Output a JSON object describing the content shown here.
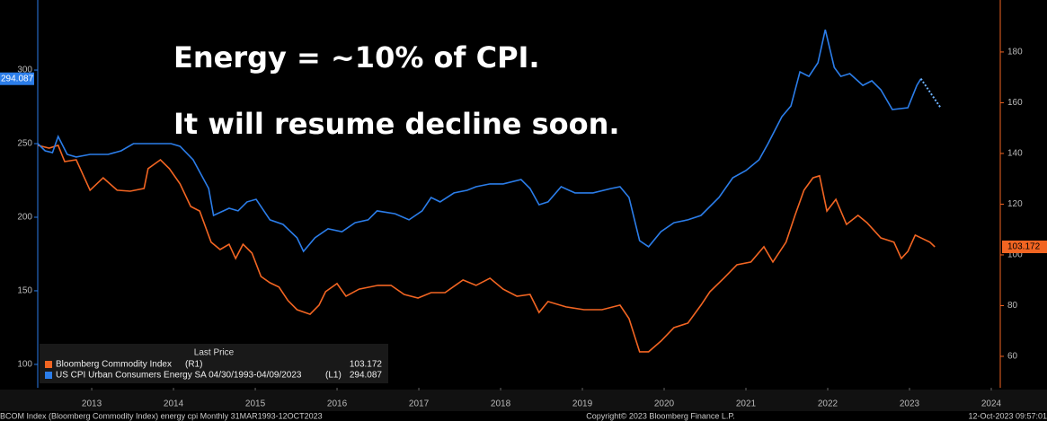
{
  "chart_data": {
    "type": "line",
    "title": "Energy = ~10% of CPI.",
    "subtitle": "It will resume decline soon.",
    "legend_title": "Last Price",
    "xlim": [
      2012.84,
      2024.61
    ],
    "xticks": [
      {
        "value": 2013.5,
        "label": "2013"
      },
      {
        "value": 2014.5,
        "label": "2014"
      },
      {
        "value": 2015.5,
        "label": "2015"
      },
      {
        "value": 2016.5,
        "label": "2016"
      },
      {
        "value": 2017.5,
        "label": "2017"
      },
      {
        "value": 2018.5,
        "label": "2018"
      },
      {
        "value": 2019.5,
        "label": "2019"
      },
      {
        "value": 2020.5,
        "label": "2020"
      },
      {
        "value": 2021.5,
        "label": "2021"
      },
      {
        "value": 2022.5,
        "label": "2022"
      },
      {
        "value": 2023.5,
        "label": "2023"
      },
      {
        "value": 2024.5,
        "label": "2024"
      }
    ],
    "ylim": [
      84.1,
      347.6
    ],
    "yticks": [
      100,
      150,
      200,
      250,
      300
    ],
    "y2lim": [
      47.6,
      200.5
    ],
    "y2ticks": [
      60,
      80,
      100,
      120,
      140,
      160,
      180
    ],
    "series": [
      {
        "name": "Bloomberg Commodity Index",
        "axis_tag": "(R1)",
        "axis": "y2",
        "color": "#f26522",
        "last_value": 103.172,
        "x": [
          2012.84,
          2012.98,
          2013.09,
          2013.17,
          2013.31,
          2013.48,
          2013.64,
          2013.81,
          2013.97,
          2014.14,
          2014.19,
          2014.34,
          2014.45,
          2014.58,
          2014.71,
          2014.82,
          2014.96,
          2015.07,
          2015.18,
          2015.26,
          2015.35,
          2015.46,
          2015.57,
          2015.68,
          2015.79,
          2015.9,
          2016.01,
          2016.17,
          2016.28,
          2016.36,
          2016.5,
          2016.61,
          2016.77,
          2017.0,
          2017.16,
          2017.32,
          2017.49,
          2017.65,
          2017.82,
          2018.04,
          2018.2,
          2018.37,
          2018.53,
          2018.7,
          2018.86,
          2018.97,
          2019.08,
          2019.3,
          2019.52,
          2019.74,
          2019.96,
          2020.07,
          2020.2,
          2020.31,
          2020.46,
          2020.62,
          2020.79,
          2020.95,
          2021.06,
          2021.23,
          2021.39,
          2021.56,
          2021.72,
          2021.83,
          2021.99,
          2022.1,
          2022.21,
          2022.32,
          2022.4,
          2022.49,
          2022.6,
          2022.73,
          2022.87,
          2022.98,
          2023.15,
          2023.31,
          2023.4,
          2023.48,
          2023.57,
          2023.75,
          2023.81
        ],
        "values": [
          143.2,
          142.1,
          143.2,
          136.8,
          137.5,
          125.5,
          130.4,
          125.5,
          125.1,
          126.2,
          134.0,
          137.5,
          134.0,
          128.0,
          119.1,
          117.3,
          105.0,
          102.1,
          104.2,
          98.6,
          104.2,
          100.7,
          91.5,
          89.0,
          87.3,
          82.0,
          78.4,
          76.6,
          80.2,
          85.5,
          88.7,
          83.7,
          86.5,
          88.0,
          88.0,
          84.4,
          83.0,
          85.1,
          85.1,
          90.1,
          88.0,
          90.8,
          86.5,
          83.7,
          84.4,
          77.3,
          81.6,
          79.5,
          78.4,
          78.4,
          80.2,
          74.9,
          61.8,
          61.8,
          66.0,
          71.3,
          73.1,
          80.2,
          85.5,
          90.8,
          96.1,
          97.2,
          103.2,
          97.2,
          105.0,
          115.6,
          125.5,
          130.4,
          131.2,
          117.3,
          121.9,
          112.0,
          115.6,
          112.7,
          106.7,
          105.0,
          98.6,
          101.4,
          107.8,
          105.0,
          103.172
        ]
      },
      {
        "name": "US CPI Urban Consumers Energy SA 04/30/1993-04/09/2023",
        "axis_tag": "(L1)",
        "color": "#2b7de9",
        "last_value": 294.087,
        "x": [
          2012.84,
          2012.93,
          2013.02,
          2013.09,
          2013.2,
          2013.31,
          2013.48,
          2013.7,
          2013.86,
          2014.01,
          2014.25,
          2014.47,
          2014.58,
          2014.74,
          2014.93,
          2014.99,
          2015.18,
          2015.29,
          2015.4,
          2015.51,
          2015.68,
          2015.84,
          2016.01,
          2016.09,
          2016.23,
          2016.39,
          2016.56,
          2016.72,
          2016.88,
          2016.99,
          2017.21,
          2017.38,
          2017.54,
          2017.65,
          2017.76,
          2017.93,
          2018.09,
          2018.2,
          2018.37,
          2018.53,
          2018.75,
          2018.86,
          2018.97,
          2019.08,
          2019.24,
          2019.41,
          2019.63,
          2019.85,
          2019.96,
          2020.07,
          2020.2,
          2020.31,
          2020.46,
          2020.62,
          2020.79,
          2020.95,
          2021.17,
          2021.34,
          2021.5,
          2021.66,
          2021.77,
          2021.94,
          2022.05,
          2022.16,
          2022.27,
          2022.38,
          2022.47,
          2022.58,
          2022.66,
          2022.77,
          2022.93,
          2023.04,
          2023.15,
          2023.29,
          2023.48,
          2023.59,
          2023.64
        ],
        "values": [
          250,
          245.1,
          243.9,
          254.9,
          242.7,
          240.9,
          242.7,
          242.7,
          245.1,
          250,
          250,
          250,
          248.2,
          239.0,
          219.5,
          201.2,
          206.1,
          204.3,
          210.4,
          212.2,
          198.2,
          195.1,
          186.0,
          176.8,
          186.0,
          192.1,
          190.2,
          196.3,
          198.2,
          204.3,
          202.4,
          198.2,
          204.3,
          213.4,
          210.4,
          216.5,
          218.3,
          220.7,
          222.6,
          222.6,
          225.6,
          219.5,
          208.5,
          210.4,
          220.7,
          216.5,
          216.5,
          219.5,
          220.7,
          213.4,
          184.1,
          179.9,
          190.2,
          196.3,
          198.2,
          201.2,
          213.4,
          226.8,
          231.7,
          239.0,
          250,
          268.3,
          275.6,
          298.8,
          295.7,
          304.9,
          327.4,
          301.8,
          295.7,
          297.6,
          289.6,
          292.7,
          286.6,
          273.2,
          274.4,
          289.6,
          294.087
        ]
      }
    ],
    "projection": {
      "x": [
        2023.64,
        2023.88
      ],
      "values": [
        294.087,
        274.4
      ]
    },
    "footer_left": "BCOM Index (Bloomberg Commodity Index) energy cpi  Monthly 31MAR1993-12OCT2023",
    "footer_center": "Copyright© 2023 Bloomberg Finance L.P.",
    "footer_right": "12-Oct-2023 09:57:01"
  }
}
